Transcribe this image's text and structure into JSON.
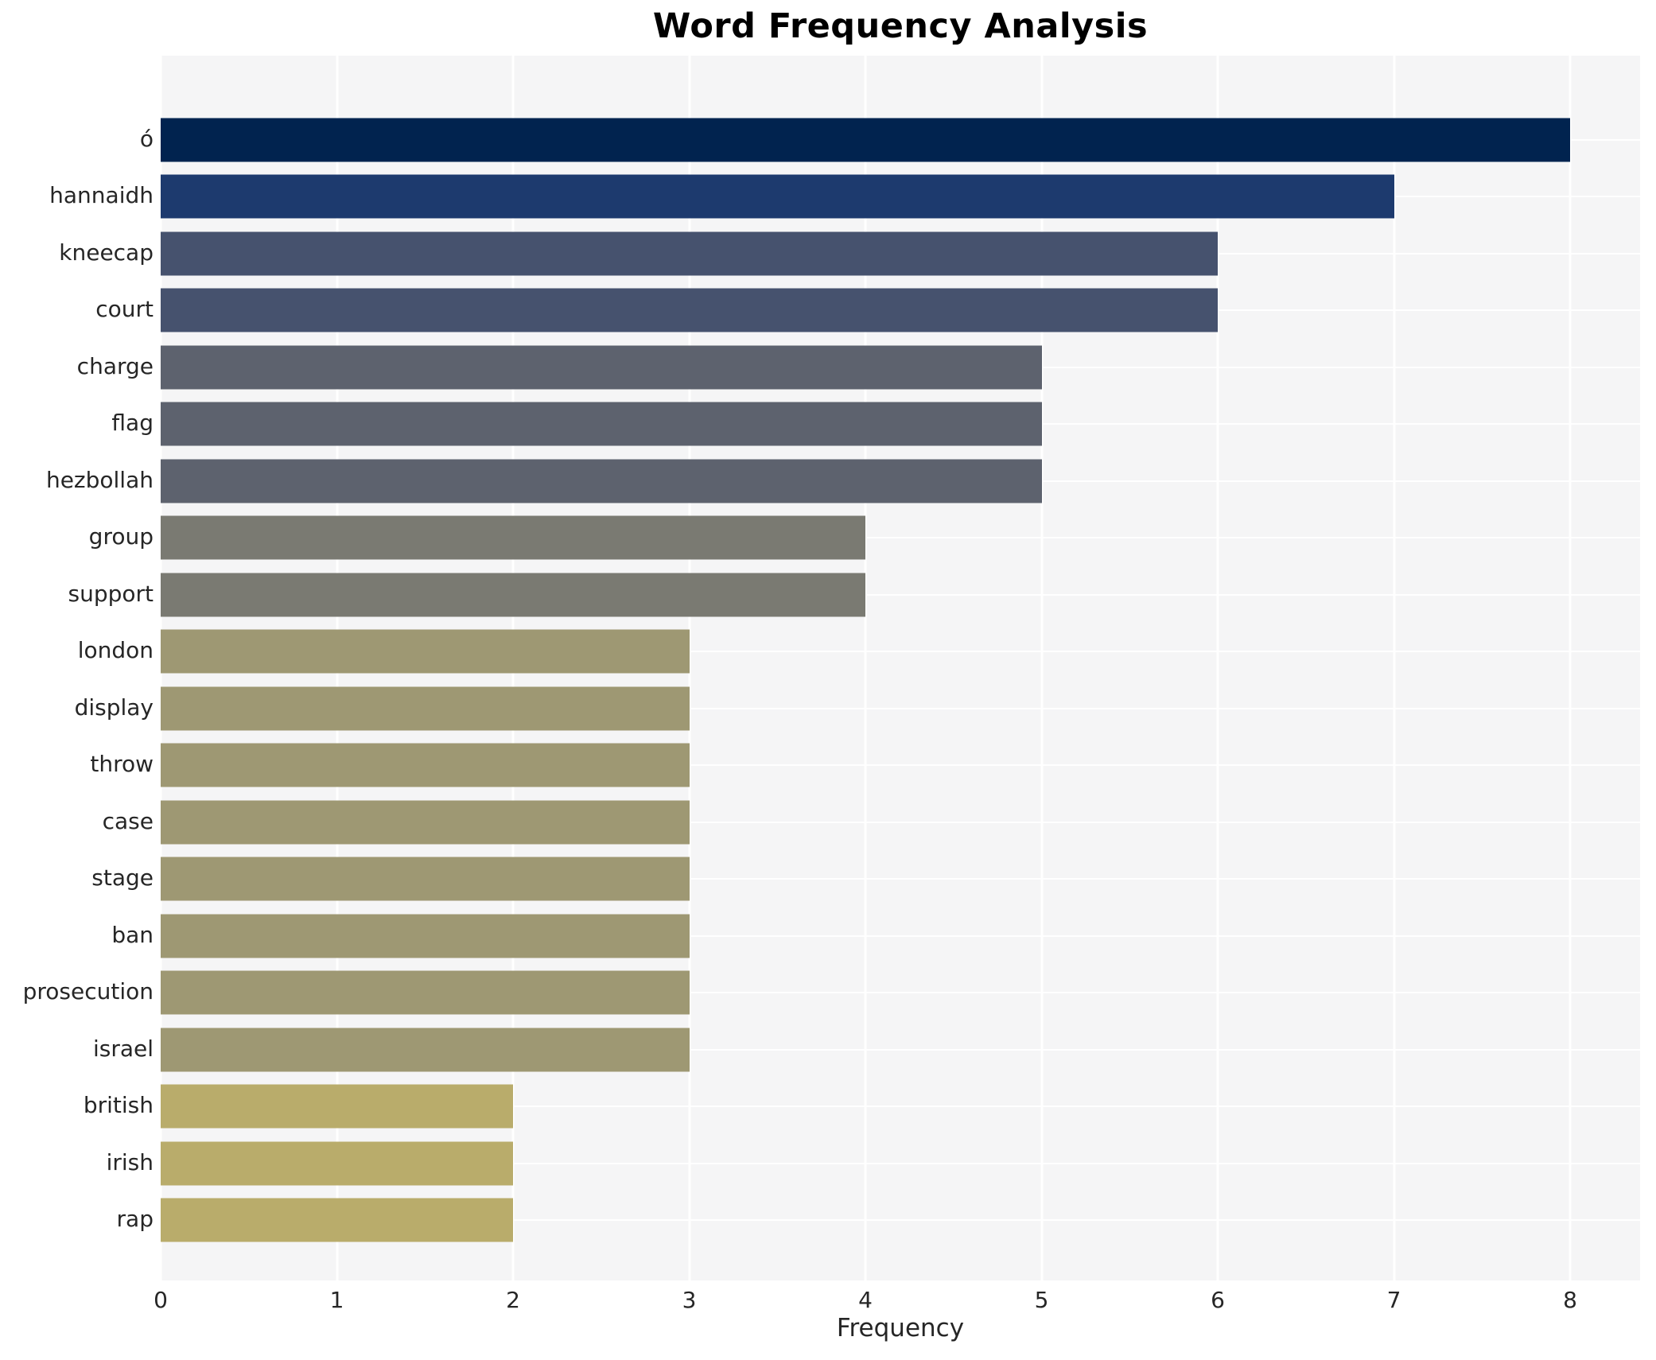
{
  "title": "Word Frequency Analysis",
  "chart_data": {
    "type": "bar",
    "orientation": "horizontal",
    "title": "Word Frequency Analysis",
    "xlabel": "Frequency",
    "ylabel": "",
    "categories": [
      "ó",
      "hannaidh",
      "kneecap",
      "court",
      "charge",
      "flag",
      "hezbollah",
      "group",
      "support",
      "london",
      "display",
      "throw",
      "case",
      "stage",
      "ban",
      "prosecution",
      "israel",
      "british",
      "irish",
      "rap"
    ],
    "values": [
      8,
      7,
      6,
      6,
      5,
      5,
      5,
      4,
      4,
      3,
      3,
      3,
      3,
      3,
      3,
      3,
      3,
      2,
      2,
      2
    ],
    "bar_colors": [
      "#01234f",
      "#1d3a6e",
      "#46526e",
      "#46526e",
      "#5d626e",
      "#5d626e",
      "#5d626e",
      "#7a7a72",
      "#7a7a72",
      "#9e9873",
      "#9e9873",
      "#9e9873",
      "#9e9873",
      "#9e9873",
      "#9e9873",
      "#9e9873",
      "#9e9873",
      "#b9ac6b",
      "#b9ac6b",
      "#b9ac6b"
    ],
    "value_color_map": {
      "8": "#01234f",
      "7": "#1d3a6e",
      "6": "#46526e",
      "5": "#5d626e",
      "4": "#7a7a72",
      "3": "#9e9873",
      "2": "#b9ac6b"
    },
    "xticks": [
      0,
      1,
      2,
      3,
      4,
      5,
      6,
      7,
      8
    ],
    "xlim": [
      0,
      8.4
    ],
    "grid": true,
    "legend": false,
    "colors": {
      "plot_background": "#f5f5f6",
      "grid_line": "#ffffff",
      "text": "#262626"
    }
  }
}
